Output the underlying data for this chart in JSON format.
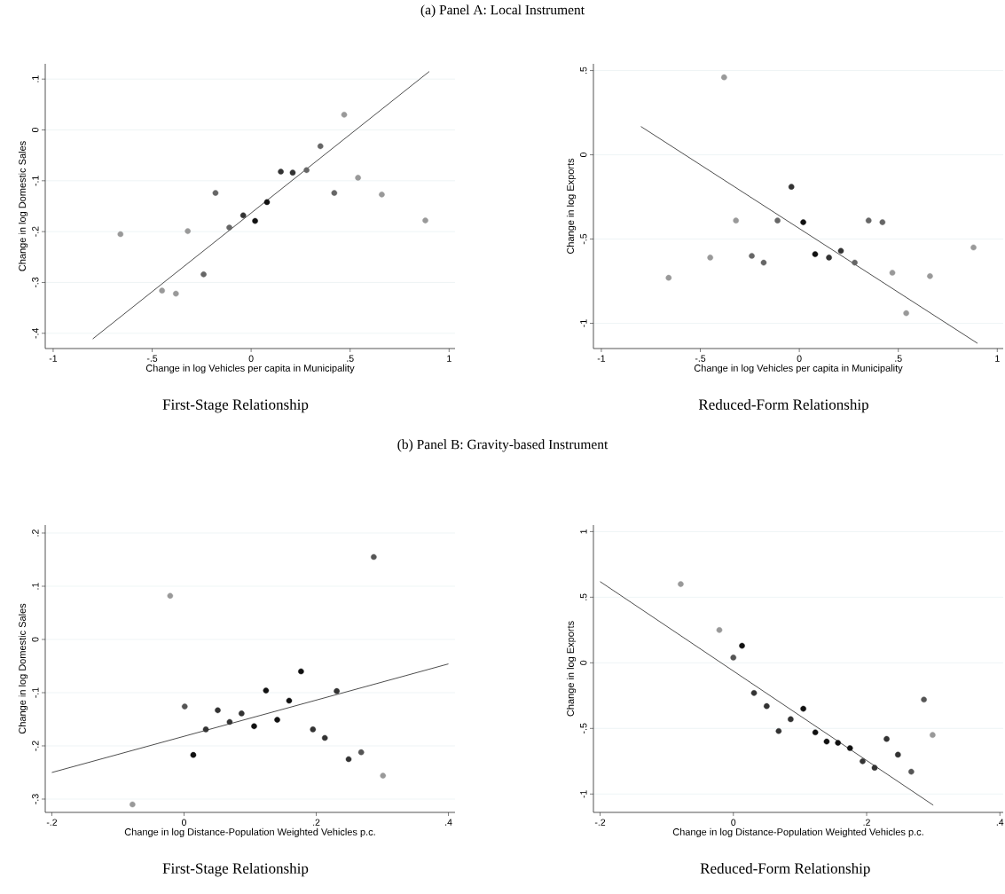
{
  "chart_data": [
    {
      "type": "scatter",
      "title": "First-Stage Relationship",
      "annotations": [
        "(a) Panel A: Local Instrument"
      ],
      "xlabel": "Change in log Vehicles per capita in Municipality",
      "ylabel": "Change in log Domestic Sales",
      "grid": "y",
      "xlim": [
        -1.04,
        1.03
      ],
      "ylim": [
        -0.43,
        0.13
      ],
      "xticks": [
        -1,
        {
          "value": -0.5,
          "label": "-.5"
        },
        0,
        {
          "value": 0.5,
          "label": ".5"
        },
        1
      ],
      "yticks": [
        {
          "value": -0.4,
          "label": "-.4"
        },
        {
          "value": -0.3,
          "label": "-.3"
        },
        {
          "value": -0.2,
          "label": "-.2"
        },
        {
          "value": -0.1,
          "label": "-.1"
        },
        0,
        {
          "value": 0.1,
          "label": ".1"
        }
      ],
      "series": [
        {
          "marker": "circle",
          "x": [
            -0.66,
            -0.45,
            -0.38,
            -0.32,
            -0.24,
            -0.18,
            -0.11,
            -0.04,
            0.02,
            0.08,
            0.15,
            0.21,
            0.28,
            0.35,
            0.42,
            0.47,
            0.54,
            0.66,
            0.88
          ],
          "values": [
            -0.205,
            -0.316,
            -0.322,
            -0.199,
            -0.284,
            -0.124,
            -0.192,
            -0.168,
            -0.179,
            -0.142,
            -0.082,
            -0.084,
            -0.079,
            -0.032,
            -0.124,
            0.03,
            -0.094,
            -0.127,
            -0.178
          ],
          "colors": [
            "#999999",
            "#999999",
            "#999999",
            "#999999",
            "#666666",
            "#666666",
            "#666666",
            "#333333",
            "#111111",
            "#111111",
            "#333333",
            "#333333",
            "#666666",
            "#666666",
            "#666666",
            "#999999",
            "#999999",
            "#999999",
            "#999999"
          ]
        },
        {
          "type": "line",
          "marker": "none",
          "color": "#3a3a3a",
          "x": [
            -0.8,
            0.9
          ],
          "values": [
            -0.411,
            0.115
          ]
        }
      ]
    },
    {
      "type": "scatter",
      "title": "Reduced-Form Relationship",
      "xlabel": "Change in log Vehicles per capita in Municipality",
      "ylabel": "Change in log Exports",
      "grid": "y",
      "xlim": [
        -1.04,
        1.03
      ],
      "ylim": [
        -1.15,
        0.54
      ],
      "xticks": [
        -1,
        {
          "value": -0.5,
          "label": "-.5"
        },
        0,
        {
          "value": 0.5,
          "label": ".5"
        },
        1
      ],
      "yticks": [
        -1,
        {
          "value": -0.5,
          "label": "-.5"
        },
        0,
        {
          "value": 0.5,
          "label": ".5"
        }
      ],
      "series": [
        {
          "marker": "circle",
          "x": [
            -0.66,
            -0.45,
            -0.38,
            -0.32,
            -0.24,
            -0.18,
            -0.11,
            -0.04,
            0.02,
            0.08,
            0.15,
            0.21,
            0.28,
            0.35,
            0.42,
            0.47,
            0.54,
            0.66,
            0.88
          ],
          "values": [
            -0.73,
            -0.61,
            0.46,
            -0.39,
            -0.6,
            -0.64,
            -0.39,
            -0.19,
            -0.4,
            -0.59,
            -0.61,
            -0.57,
            -0.64,
            -0.39,
            -0.4,
            -0.7,
            -0.94,
            -0.72,
            -0.55
          ],
          "colors": [
            "#999999",
            "#999999",
            "#999999",
            "#999999",
            "#666666",
            "#666666",
            "#666666",
            "#333333",
            "#111111",
            "#111111",
            "#333333",
            "#333333",
            "#666666",
            "#666666",
            "#666666",
            "#999999",
            "#999999",
            "#999999",
            "#999999"
          ]
        },
        {
          "type": "line",
          "marker": "none",
          "color": "#3a3a3a",
          "x": [
            -0.8,
            0.9
          ],
          "values": [
            0.168,
            -1.119
          ]
        }
      ]
    },
    {
      "type": "scatter",
      "title": "First-Stage Relationship",
      "annotations": [
        "(b) Panel B: Gravity-based Instrument"
      ],
      "xlabel": "Change in log Distance-Population Weighted Vehicles p.c.",
      "ylabel": "Change in log Domestic Sales",
      "grid": "y",
      "xlim": [
        -0.21,
        0.41
      ],
      "ylim": [
        -0.325,
        0.215
      ],
      "xticks": [
        {
          "value": -0.2,
          "label": "-.2"
        },
        0,
        {
          "value": 0.2,
          "label": ".2"
        },
        {
          "value": 0.4,
          "label": ".4"
        }
      ],
      "yticks": [
        {
          "value": -0.3,
          "label": "-.3"
        },
        {
          "value": -0.2,
          "label": "-.2"
        },
        {
          "value": -0.1,
          "label": "-.1"
        },
        0,
        {
          "value": 0.1,
          "label": ".1"
        },
        {
          "value": 0.2,
          "label": ".2"
        }
      ],
      "series": [
        {
          "marker": "circle",
          "x": [
            -0.078,
            -0.021,
            0.001,
            0.014,
            0.033,
            0.051,
            0.069,
            0.087,
            0.106,
            0.124,
            0.141,
            0.159,
            0.177,
            0.195,
            0.213,
            0.231,
            0.249,
            0.268,
            0.287,
            0.301
          ],
          "values": [
            -0.31,
            0.082,
            -0.126,
            -0.217,
            -0.169,
            -0.133,
            -0.155,
            -0.139,
            -0.163,
            -0.096,
            -0.151,
            -0.115,
            -0.06,
            -0.169,
            -0.185,
            -0.097,
            -0.225,
            -0.212,
            0.155,
            -0.256
          ],
          "colors": [
            "#999999",
            "#999999",
            "#555555",
            "#111111",
            "#333333",
            "#333333",
            "#333333",
            "#333333",
            "#111111",
            "#111111",
            "#111111",
            "#111111",
            "#111111",
            "#333333",
            "#333333",
            "#333333",
            "#333333",
            "#555555",
            "#555555",
            "#999999"
          ]
        },
        {
          "type": "line",
          "marker": "none",
          "color": "#3a3a3a",
          "x": [
            -0.2,
            0.4
          ],
          "values": [
            -0.25,
            -0.046
          ]
        }
      ]
    },
    {
      "type": "scatter",
      "title": "Reduced-Form Relationship",
      "xlabel": "Change in log Distance-Population Weighted Vehicles p.c.",
      "ylabel": "Change in log Exports",
      "grid": "y",
      "xlim": [
        -0.21,
        0.405
      ],
      "ylim": [
        -1.14,
        1.05
      ],
      "xticks": [
        {
          "value": -0.2,
          "label": "-.2"
        },
        0,
        {
          "value": 0.2,
          "label": ".2"
        },
        {
          "value": 0.4,
          "label": ".4"
        }
      ],
      "yticks": [
        -1,
        {
          "value": -0.5,
          "label": "-.5"
        },
        0,
        {
          "value": 0.5,
          "label": ".5"
        },
        1
      ],
      "series": [
        {
          "marker": "circle",
          "x": [
            -0.079,
            -0.021,
            0.0,
            0.013,
            0.031,
            0.05,
            0.068,
            0.086,
            0.105,
            0.123,
            0.14,
            0.157,
            0.175,
            0.194,
            0.212,
            0.23,
            0.247,
            0.267,
            0.286,
            0.299
          ],
          "values": [
            0.6,
            0.25,
            0.04,
            0.13,
            -0.23,
            -0.33,
            -0.52,
            -0.43,
            -0.35,
            -0.53,
            -0.6,
            -0.61,
            -0.65,
            -0.75,
            -0.8,
            -0.58,
            -0.7,
            -0.83,
            -0.28,
            -0.55
          ],
          "colors": [
            "#999999",
            "#999999",
            "#555555",
            "#111111",
            "#333333",
            "#333333",
            "#333333",
            "#333333",
            "#111111",
            "#111111",
            "#111111",
            "#111111",
            "#111111",
            "#333333",
            "#333333",
            "#333333",
            "#333333",
            "#555555",
            "#555555",
            "#999999"
          ]
        },
        {
          "type": "line",
          "marker": "none",
          "color": "#3a3a3a",
          "x": [
            -0.2,
            0.3
          ],
          "values": [
            0.619,
            -1.085
          ]
        }
      ]
    }
  ]
}
